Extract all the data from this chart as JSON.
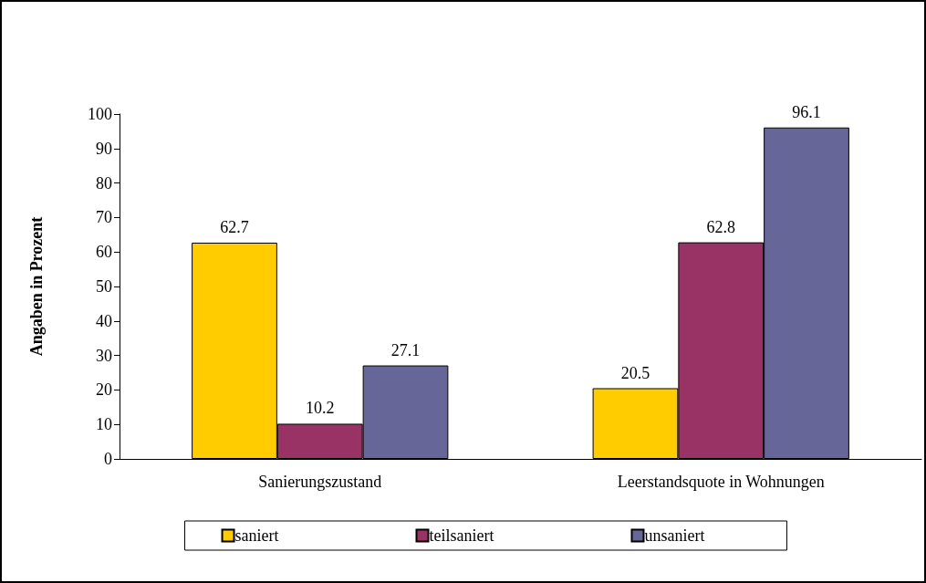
{
  "chart_data": {
    "type": "bar",
    "ylabel": "Angaben in Prozent",
    "categories": [
      "Sanierungszustand",
      "Leerstandsquote in Wohnungen"
    ],
    "series": [
      {
        "name": "saniert",
        "color": "#ffcc00",
        "values": [
          62.7,
          20.5
        ]
      },
      {
        "name": "teilsaniert",
        "color": "#993366",
        "values": [
          10.2,
          62.8
        ]
      },
      {
        "name": "unsaniert",
        "color": "#666699",
        "values": [
          27.1,
          96.1
        ]
      }
    ],
    "ylim": [
      0,
      100
    ],
    "yticks": [
      0,
      10,
      20,
      30,
      40,
      50,
      60,
      70,
      80,
      90,
      100
    ],
    "grid": false,
    "legend": "bottom",
    "data_labels": true
  }
}
